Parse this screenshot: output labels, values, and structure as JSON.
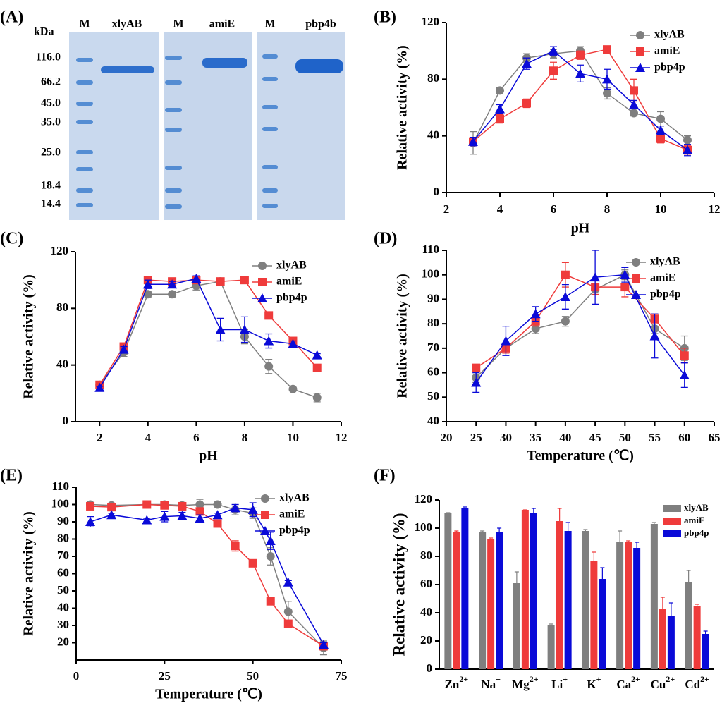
{
  "gel_panel": {
    "panel_label": "(A)",
    "unit": "kDa",
    "lanes": [
      "M",
      "xlyAB",
      "M",
      "amiE",
      "M",
      "pbp4b"
    ],
    "markers": [
      "116.0",
      "66.2",
      "45.0",
      "35.0",
      "25.0",
      "18.4",
      "14.4"
    ]
  },
  "chart_data": [
    {
      "type": "line",
      "panel_label": "(B)",
      "xlabel": "pH",
      "ylabel": "Relative activity (%)",
      "x": [
        3,
        4,
        5,
        6,
        7,
        8,
        9,
        10,
        11
      ],
      "xlim": [
        2,
        12
      ],
      "xticks": [
        2,
        4,
        6,
        8,
        10,
        12
      ],
      "ylim": [
        0,
        120
      ],
      "yticks": [
        0,
        40,
        80,
        120
      ],
      "legend": "upper right",
      "series": [
        {
          "name": "xlyAB",
          "color": "#7f7f7f",
          "marker": "circle",
          "values": [
            35,
            72,
            95,
            98,
            100,
            70,
            56,
            52,
            37
          ],
          "errors": [
            8,
            2,
            3,
            3,
            3,
            4,
            2,
            5,
            3
          ]
        },
        {
          "name": "amiE",
          "color": "#ef3b3b",
          "marker": "square",
          "values": [
            36,
            52,
            63,
            86,
            97,
            101,
            72,
            38,
            30
          ],
          "errors": [
            3,
            3,
            3,
            6,
            3,
            2,
            8,
            3,
            3
          ]
        },
        {
          "name": "pbp4p",
          "color": "#0a0ad8",
          "marker": "triangle",
          "values": [
            36,
            59,
            91,
            100,
            84,
            80,
            62,
            44,
            30
          ],
          "errors": [
            3,
            3,
            4,
            3,
            6,
            7,
            3,
            3,
            4
          ]
        }
      ]
    },
    {
      "type": "line",
      "panel_label": "(C)",
      "xlabel": "pH",
      "ylabel": "Relative activity (%)",
      "x": [
        2,
        3,
        4,
        5,
        6,
        7,
        8,
        9,
        10,
        11
      ],
      "xlim": [
        1,
        12
      ],
      "xticks": [
        2,
        4,
        6,
        8,
        10,
        12
      ],
      "ylim": [
        0,
        120
      ],
      "yticks": [
        0,
        40,
        80,
        120
      ],
      "legend": "upper right",
      "series": [
        {
          "name": "xlyAB",
          "color": "#7f7f7f",
          "marker": "circle",
          "values": [
            26,
            49,
            90,
            90,
            96,
            99,
            60,
            39,
            23,
            17
          ],
          "errors": [
            2,
            3,
            2,
            2,
            3,
            2,
            5,
            5,
            1,
            3
          ]
        },
        {
          "name": "amiE",
          "color": "#ef3b3b",
          "marker": "square",
          "values": [
            26,
            53,
            100,
            99,
            100,
            99,
            100,
            75,
            57,
            38
          ],
          "errors": [
            1,
            2,
            2,
            1,
            1,
            1,
            1,
            1,
            1,
            1
          ]
        },
        {
          "name": "pbp4p",
          "color": "#0a0ad8",
          "marker": "triangle",
          "values": [
            24,
            51,
            97,
            97,
            101,
            65,
            65,
            57,
            55,
            47
          ],
          "errors": [
            1,
            2,
            3,
            2,
            2,
            8,
            9,
            5,
            2,
            1
          ]
        }
      ]
    },
    {
      "type": "line",
      "panel_label": "(D)",
      "xlabel": "Temperature (℃)",
      "ylabel": "Relative activity (%)",
      "x": [
        25,
        30,
        35,
        40,
        45,
        50,
        55,
        60
      ],
      "xlim": [
        20,
        65
      ],
      "xticks": [
        20,
        25,
        30,
        35,
        40,
        45,
        50,
        55,
        60,
        65
      ],
      "ylim": [
        40,
        110
      ],
      "yticks": [
        40,
        50,
        60,
        70,
        80,
        90,
        100,
        110
      ],
      "legend": "upper right",
      "series": [
        {
          "name": "xlyAB",
          "color": "#7f7f7f",
          "marker": "circle",
          "values": [
            58,
            70,
            78,
            81,
            94,
            100,
            78,
            70
          ],
          "errors": [
            2,
            2,
            2,
            2,
            2,
            2,
            2,
            5
          ]
        },
        {
          "name": "amiE",
          "color": "#ef3b3b",
          "marker": "square",
          "values": [
            62,
            70,
            81,
            100,
            95,
            95,
            82,
            67
          ],
          "errors": [
            1,
            2,
            2,
            5,
            3,
            4,
            2,
            3
          ]
        },
        {
          "name": "pbp4p",
          "color": "#0a0ad8",
          "marker": "triangle",
          "values": [
            56,
            73,
            84,
            91,
            99,
            100,
            75,
            59
          ],
          "errors": [
            4,
            6,
            3,
            5,
            11,
            3,
            9,
            5
          ]
        }
      ]
    },
    {
      "type": "line",
      "panel_label": "(E)",
      "xlabel": "Temperature (℃)",
      "ylabel": "Relative activity (%)",
      "x": [
        4,
        10,
        20,
        25,
        30,
        35,
        40,
        45,
        50,
        55,
        60,
        70
      ],
      "xlim": [
        0,
        75
      ],
      "xticks": [
        0,
        25,
        50,
        75
      ],
      "ylim": [
        10,
        110
      ],
      "yticks": [
        20,
        30,
        40,
        50,
        60,
        70,
        80,
        90,
        100,
        110
      ],
      "legend": "upper right",
      "series": [
        {
          "name": "xlyAB",
          "color": "#7f7f7f",
          "marker": "circle",
          "values": [
            100,
            99.5,
            100,
            100,
            99.5,
            100,
            100,
            97,
            95,
            70,
            38,
            17
          ],
          "errors": [
            1,
            1,
            1,
            1,
            1,
            3,
            2,
            3,
            3,
            5,
            6,
            4
          ]
        },
        {
          "name": "amiE",
          "color": "#ef3b3b",
          "marker": "square",
          "values": [
            99,
            98.5,
            100,
            99.5,
            99,
            96,
            89,
            76,
            66,
            44,
            31,
            18
          ],
          "errors": [
            1,
            1,
            1,
            1,
            1,
            2,
            1,
            3,
            1,
            1,
            1,
            2
          ]
        },
        {
          "name": "pbp4p",
          "color": "#0a0ad8",
          "marker": "triangle",
          "values": [
            90,
            94,
            91,
            93,
            93.5,
            92,
            94,
            98,
            97,
            79,
            55,
            19
          ],
          "errors": [
            3,
            1,
            1,
            3,
            2,
            2,
            1,
            2,
            4,
            5,
            1,
            1
          ]
        }
      ]
    },
    {
      "type": "bar",
      "panel_label": "(F)",
      "ylabel": "Relative activity (%)",
      "categories": [
        {
          "symbol": "Zn",
          "charge": "2+"
        },
        {
          "symbol": "Na",
          "charge": "+"
        },
        {
          "symbol": "Mg",
          "charge": "2+"
        },
        {
          "symbol": "Li",
          "charge": "+"
        },
        {
          "symbol": "K",
          "charge": "+"
        },
        {
          "symbol": "Ca",
          "charge": "2+"
        },
        {
          "symbol": "Cu",
          "charge": "2+"
        },
        {
          "symbol": "Cd",
          "charge": "2+"
        }
      ],
      "ylim": [
        0,
        120
      ],
      "yticks": [
        0,
        20,
        40,
        60,
        80,
        100,
        120
      ],
      "legend": "upper right",
      "series": [
        {
          "name": "xlyAB",
          "color": "#7f7f7f",
          "values": [
            111,
            97,
            61,
            31,
            98,
            90,
            103,
            62
          ],
          "errors": [
            0,
            1,
            8,
            1,
            1,
            8,
            1,
            8
          ]
        },
        {
          "name": "amiE",
          "color": "#ef3b3b",
          "values": [
            97,
            92,
            113,
            105,
            77,
            90,
            43,
            45
          ],
          "errors": [
            1,
            1,
            0,
            9,
            6,
            1,
            8,
            1
          ]
        },
        {
          "name": "pbp4p",
          "color": "#0a0ad8",
          "values": [
            114,
            97,
            111,
            98,
            64,
            86,
            38,
            25
          ],
          "errors": [
            1,
            3,
            3,
            6,
            8,
            4,
            9,
            2
          ]
        }
      ]
    }
  ]
}
